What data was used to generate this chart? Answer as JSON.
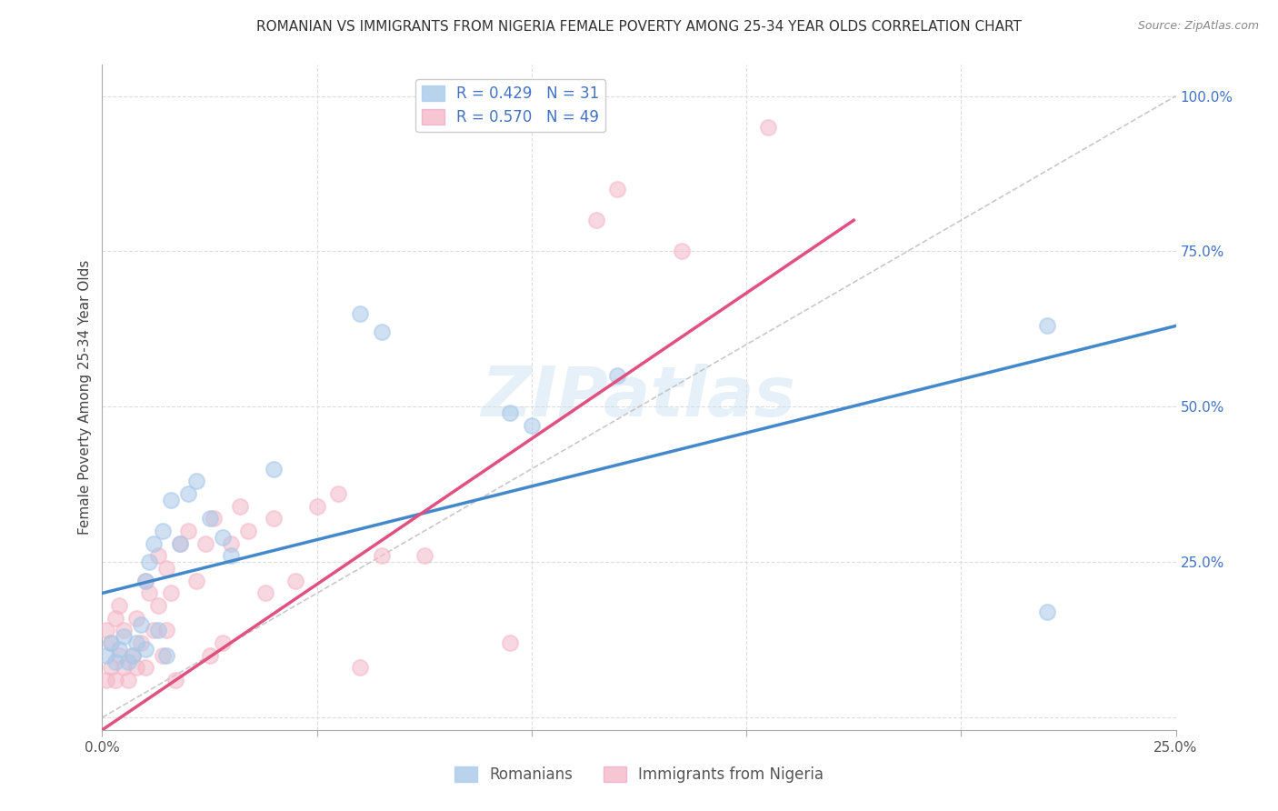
{
  "title": "ROMANIAN VS IMMIGRANTS FROM NIGERIA FEMALE POVERTY AMONG 25-34 YEAR OLDS CORRELATION CHART",
  "source": "Source: ZipAtlas.com",
  "xlabel": "",
  "ylabel": "Female Poverty Among 25-34 Year Olds",
  "xlim": [
    0.0,
    0.25
  ],
  "ylim": [
    -0.02,
    1.05
  ],
  "xticks": [
    0.0,
    0.05,
    0.1,
    0.15,
    0.2,
    0.25
  ],
  "xticklabels": [
    "0.0%",
    "",
    "",
    "",
    "",
    "25.0%"
  ],
  "yticks_right": [
    0.0,
    0.25,
    0.5,
    0.75,
    1.0
  ],
  "ytick_labels_right": [
    "",
    "25.0%",
    "50.0%",
    "75.0%",
    "100.0%"
  ],
  "romanian_R": 0.429,
  "romanian_N": 31,
  "nigeria_R": 0.57,
  "nigeria_N": 49,
  "blue_color": "#a8c8e8",
  "pink_color": "#f4b8c8",
  "blue_line_color": "#4488cc",
  "pink_line_color": "#e05080",
  "ref_line_color": "#bbbbbb",
  "watermark": "ZIPatlas",
  "blue_line_x0": 0.0,
  "blue_line_y0": 0.2,
  "blue_line_x1": 0.25,
  "blue_line_y1": 0.63,
  "pink_line_x0": 0.0,
  "pink_line_y0": -0.02,
  "pink_line_x1": 0.175,
  "pink_line_y1": 0.8,
  "romanian_x": [
    0.001,
    0.002,
    0.003,
    0.004,
    0.005,
    0.006,
    0.007,
    0.008,
    0.009,
    0.01,
    0.01,
    0.011,
    0.012,
    0.013,
    0.014,
    0.015,
    0.016,
    0.018,
    0.02,
    0.022,
    0.025,
    0.028,
    0.03,
    0.04,
    0.06,
    0.065,
    0.095,
    0.1,
    0.12,
    0.22,
    0.22
  ],
  "romanian_y": [
    0.1,
    0.12,
    0.09,
    0.11,
    0.13,
    0.09,
    0.1,
    0.12,
    0.15,
    0.11,
    0.22,
    0.25,
    0.28,
    0.14,
    0.3,
    0.1,
    0.35,
    0.28,
    0.36,
    0.38,
    0.32,
    0.29,
    0.26,
    0.4,
    0.65,
    0.62,
    0.49,
    0.47,
    0.55,
    0.63,
    0.17
  ],
  "nigeria_x": [
    0.001,
    0.001,
    0.002,
    0.002,
    0.003,
    0.003,
    0.004,
    0.004,
    0.005,
    0.005,
    0.006,
    0.007,
    0.008,
    0.008,
    0.009,
    0.01,
    0.01,
    0.011,
    0.012,
    0.013,
    0.013,
    0.014,
    0.015,
    0.015,
    0.016,
    0.017,
    0.018,
    0.02,
    0.022,
    0.024,
    0.025,
    0.026,
    0.028,
    0.03,
    0.032,
    0.034,
    0.038,
    0.04,
    0.045,
    0.05,
    0.055,
    0.06,
    0.065,
    0.075,
    0.095,
    0.115,
    0.12,
    0.135,
    0.155
  ],
  "nigeria_y": [
    0.06,
    0.14,
    0.08,
    0.12,
    0.06,
    0.16,
    0.1,
    0.18,
    0.08,
    0.14,
    0.06,
    0.1,
    0.08,
    0.16,
    0.12,
    0.08,
    0.22,
    0.2,
    0.14,
    0.18,
    0.26,
    0.1,
    0.14,
    0.24,
    0.2,
    0.06,
    0.28,
    0.3,
    0.22,
    0.28,
    0.1,
    0.32,
    0.12,
    0.28,
    0.34,
    0.3,
    0.2,
    0.32,
    0.22,
    0.34,
    0.36,
    0.08,
    0.26,
    0.26,
    0.12,
    0.8,
    0.85,
    0.75,
    0.95
  ]
}
